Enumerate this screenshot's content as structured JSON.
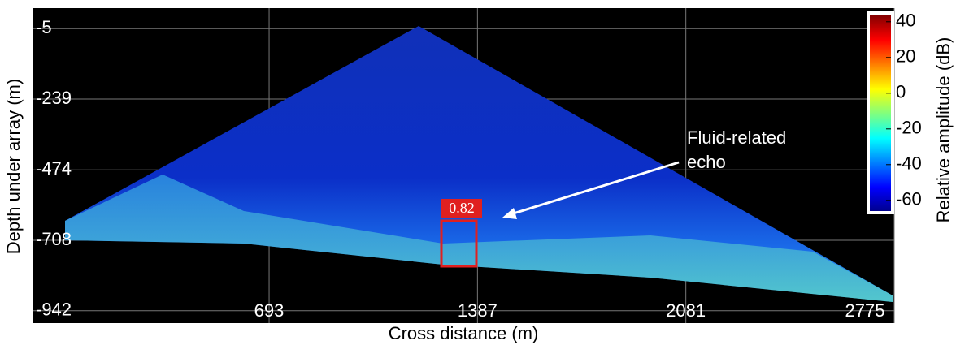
{
  "chart_data": {
    "type": "heatmap",
    "xlabel": "Cross distance (m)",
    "ylabel": "Depth under array (m)",
    "xlim": [
      -95,
      2775
    ],
    "xticks": [
      693,
      1387,
      2081,
      2775
    ],
    "ylim": [
      -983,
      63
    ],
    "yticks": [
      -5,
      -239,
      -474,
      -708,
      -942
    ],
    "grid": true,
    "colorbar": {
      "label": "Relative amplitude (dB)",
      "lim": [
        -66,
        44
      ],
      "ticks": [
        40,
        20,
        0,
        -20,
        -40,
        -60
      ]
    },
    "annotations": [
      {
        "text": "Fluid-related echo"
      },
      {
        "text": "0.82"
      }
    ]
  }
}
